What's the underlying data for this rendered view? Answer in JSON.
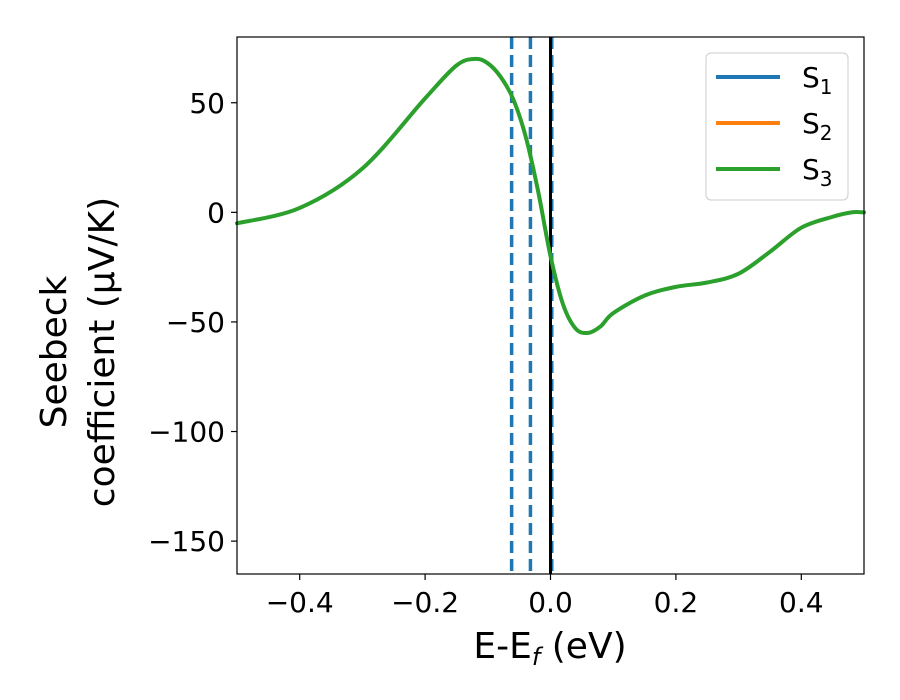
{
  "chart_data": {
    "type": "line",
    "xlabel": {
      "main": "E-E",
      "sub": "f",
      "unit": " (eV)"
    },
    "ylabel": {
      "line1": "Seebeck",
      "line2": "coefficient  (μV/K)"
    },
    "xlim": [
      -0.5,
      0.5
    ],
    "ylim": [
      -165,
      80
    ],
    "xticks": [
      -0.4,
      -0.2,
      0.0,
      0.2,
      0.4
    ],
    "xtick_labels": [
      "−0.4",
      "−0.2",
      "0.0",
      "0.2",
      "0.4"
    ],
    "yticks": [
      50,
      0,
      -50,
      -100,
      -150
    ],
    "ytick_labels": [
      "50",
      "0",
      "−50",
      "−100",
      "−150"
    ],
    "grid": false,
    "legend_position": "top-right",
    "vlines": [
      {
        "x": -0.062,
        "style": "dashed",
        "color": "#1f77b4"
      },
      {
        "x": -0.032,
        "style": "dashed",
        "color": "#1f77b4"
      },
      {
        "x": 0.002,
        "style": "dashed",
        "color": "#1f77b4"
      },
      {
        "x": 0.0,
        "style": "solid",
        "color": "#000000"
      }
    ],
    "series": [
      {
        "name": "S",
        "sub": "1",
        "color": "#1f77b4",
        "visible_line": false,
        "x": [
          -0.5,
          -0.4,
          -0.3,
          -0.2,
          -0.15,
          -0.12,
          -0.1,
          -0.08,
          -0.06,
          -0.04,
          -0.02,
          0.0,
          0.02,
          0.04,
          0.06,
          0.08,
          0.1,
          0.15,
          0.2,
          0.25,
          0.3,
          0.35,
          0.4,
          0.45,
          0.48,
          0.5
        ],
        "y": [
          -5,
          2,
          20,
          52,
          67,
          70,
          68,
          62,
          52,
          35,
          10,
          -20,
          -42,
          -53,
          -55,
          -52,
          -46,
          -38,
          -34,
          -32,
          -28,
          -18,
          -7,
          -2,
          0,
          0
        ]
      },
      {
        "name": "S",
        "sub": "2",
        "color": "#ff7f0e",
        "visible_line": false,
        "x": [
          -0.5,
          -0.4,
          -0.3,
          -0.2,
          -0.15,
          -0.12,
          -0.1,
          -0.08,
          -0.06,
          -0.04,
          -0.02,
          0.0,
          0.02,
          0.04,
          0.06,
          0.08,
          0.1,
          0.15,
          0.2,
          0.25,
          0.3,
          0.35,
          0.4,
          0.45,
          0.48,
          0.5
        ],
        "y": [
          -5,
          2,
          20,
          52,
          67,
          70,
          68,
          62,
          52,
          35,
          10,
          -20,
          -42,
          -53,
          -55,
          -52,
          -46,
          -38,
          -34,
          -32,
          -28,
          -18,
          -7,
          -2,
          0,
          0
        ]
      },
      {
        "name": "S",
        "sub": "3",
        "color": "#2ca02c",
        "visible_line": true,
        "x": [
          -0.5,
          -0.4,
          -0.3,
          -0.2,
          -0.15,
          -0.12,
          -0.1,
          -0.08,
          -0.06,
          -0.04,
          -0.02,
          0.0,
          0.02,
          0.04,
          0.06,
          0.08,
          0.1,
          0.15,
          0.2,
          0.25,
          0.3,
          0.35,
          0.4,
          0.45,
          0.48,
          0.5
        ],
        "y": [
          -5,
          2,
          20,
          52,
          67,
          70,
          68,
          62,
          52,
          35,
          10,
          -20,
          -42,
          -53,
          -55,
          -52,
          -46,
          -38,
          -34,
          -32,
          -28,
          -18,
          -7,
          -2,
          0,
          0
        ]
      }
    ]
  }
}
